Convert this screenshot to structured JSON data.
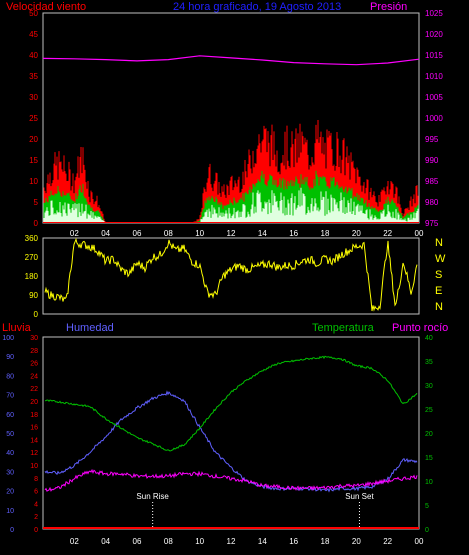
{
  "colors": {
    "background": "#000000",
    "frame": "#c0c0c0",
    "wind_speed": "#ff0000",
    "wind_gust": "#ff0000",
    "wind_avg": "#00c000",
    "wind_low": "#e0ffe0",
    "pressure": "#ff00ff",
    "direction": "#ffff00",
    "rain": "#ff0000",
    "humidity": "#6060ff",
    "temperature": "#00c000",
    "dewpoint": "#ff00ff",
    "sun_lines": "#ffffff",
    "axis_text_left_top": "#ff0000",
    "axis_text_right_top": "#ff00ff",
    "axis_text_humidity": "#6060ff",
    "axis_text_temperature": "#00c000",
    "compass_text": "#ffff00",
    "hour_text": "#ffffff"
  },
  "header": {
    "left_label": "Velocidad viento",
    "center_label": "24 hora graficado, 19 Agosto 2013",
    "right_label": "Presión"
  },
  "hours": [
    "02",
    "04",
    "06",
    "08",
    "10",
    "12",
    "14",
    "16",
    "18",
    "20",
    "22",
    "00"
  ],
  "chart_data": [
    {
      "type": "area",
      "name": "wind-pressure",
      "left_axis": {
        "ticks": [
          "0",
          "5",
          "10",
          "15",
          "20",
          "25",
          "30",
          "35",
          "40",
          "45",
          "50"
        ],
        "ylim": [
          0,
          50
        ]
      },
      "right_axis": {
        "ticks": [
          "975",
          "980",
          "985",
          "990",
          "995",
          "1000",
          "1005",
          "1010",
          "1015",
          "1020",
          "1025"
        ],
        "ylim": [
          975,
          1025
        ]
      },
      "series": [
        {
          "name": "Velocidad viento",
          "x": [
            0,
            0.5,
            1,
            1.5,
            2,
            2.5,
            3,
            3.5,
            4,
            4.5,
            5,
            5.5,
            6,
            6.5,
            7,
            7.5,
            8,
            8.5,
            9,
            9.5,
            10,
            10.5,
            11,
            11.5,
            12,
            12.5,
            13,
            13.5,
            14,
            14.5,
            15,
            15.5,
            16,
            16.5,
            17,
            17.5,
            18,
            18.5,
            19,
            19.5,
            20,
            20.5,
            21,
            21.5,
            22,
            22.5,
            23,
            23.5,
            24
          ],
          "values": [
            8,
            12,
            14,
            12,
            10,
            16,
            7,
            5,
            0,
            0,
            0,
            0,
            0,
            0,
            0,
            0,
            0,
            0,
            0,
            0,
            1,
            12,
            10,
            7,
            9,
            10,
            12,
            18,
            20,
            19,
            16,
            18,
            17,
            19,
            16,
            20,
            17,
            18,
            17,
            14,
            12,
            9,
            7,
            5,
            10,
            8,
            2,
            5,
            8
          ]
        },
        {
          "name": "Presión",
          "x": [
            0,
            2,
            4,
            6,
            8,
            10,
            12,
            14,
            16,
            18,
            20,
            22,
            24
          ],
          "values": [
            1014.2,
            1014.1,
            1013.9,
            1013.6,
            1013.9,
            1014.8,
            1014.3,
            1013.8,
            1013.2,
            1012.9,
            1012.7,
            1013.1,
            1014.0
          ]
        }
      ]
    },
    {
      "type": "line",
      "name": "wind-direction",
      "left_axis": {
        "ticks": [
          "0",
          "90",
          "180",
          "270",
          "360"
        ],
        "ylim": [
          0,
          360
        ]
      },
      "compass": [
        "N",
        "W",
        "S",
        "E",
        "N"
      ],
      "series": [
        {
          "name": "direction",
          "x": [
            0,
            0.5,
            1,
            1.5,
            2,
            2.5,
            3,
            3.5,
            4,
            4.5,
            5,
            5.5,
            6,
            6.5,
            7,
            7.5,
            8,
            8.5,
            9,
            9.5,
            10,
            10.5,
            11,
            11.5,
            12,
            12.5,
            13,
            13.5,
            14,
            14.5,
            15,
            15.5,
            16,
            16.5,
            17,
            17.5,
            18,
            18.5,
            19,
            19.5,
            20,
            20.5,
            21,
            21.5,
            22,
            22.5,
            23,
            23.5,
            24
          ],
          "values": [
            110,
            90,
            80,
            60,
            340,
            330,
            320,
            300,
            250,
            260,
            210,
            190,
            240,
            220,
            270,
            280,
            340,
            300,
            310,
            250,
            230,
            100,
            90,
            180,
            210,
            230,
            210,
            220,
            230,
            240,
            220,
            230,
            230,
            250,
            260,
            240,
            260,
            250,
            280,
            300,
            320,
            330,
            20,
            40,
            340,
            30,
            250,
            100,
            280
          ]
        }
      ]
    },
    {
      "type": "line",
      "name": "humidity-temperature",
      "header": {
        "rain": "Lluvia",
        "humidity": "Humedad",
        "temperature": "Temperatura",
        "dewpoint": "Punto rocío"
      },
      "humidity_axis": {
        "ticks": [
          "0",
          "10",
          "20",
          "30",
          "40",
          "50",
          "60",
          "70",
          "80",
          "90",
          "100"
        ],
        "ylim": [
          0,
          100
        ]
      },
      "rain_axis": {
        "ticks": [
          "0",
          "2",
          "4",
          "6",
          "8",
          "10",
          "12",
          "14",
          "16",
          "18",
          "20",
          "22",
          "24",
          "26",
          "28",
          "30"
        ],
        "ylim": [
          0,
          30
        ]
      },
      "temperature_axis": {
        "ticks": [
          "0",
          "5",
          "10",
          "15",
          "20",
          "25",
          "30",
          "35",
          "40"
        ],
        "ylim": [
          0,
          40
        ]
      },
      "annotations": {
        "sunrise": "Sun Rise",
        "sunset": "Sun Set",
        "sunrise_hour": 7,
        "sunset_hour": 20.2
      },
      "series": [
        {
          "name": "Lluvia",
          "x": [
            0,
            24
          ],
          "values": [
            0,
            0
          ]
        },
        {
          "name": "Humedad",
          "x": [
            0,
            1,
            2,
            3,
            4,
            5,
            6,
            7,
            8,
            9,
            10,
            11,
            12,
            13,
            14,
            15,
            16,
            17,
            18,
            19,
            20,
            21,
            22,
            23,
            24
          ],
          "values": [
            30,
            29,
            33,
            40,
            48,
            57,
            63,
            68,
            71,
            67,
            53,
            40,
            32,
            25,
            22,
            21,
            21,
            21,
            20,
            21,
            21,
            22,
            26,
            36,
            35
          ]
        },
        {
          "name": "Temperatura",
          "x": [
            0,
            1,
            2,
            3,
            4,
            5,
            6,
            7,
            8,
            9,
            10,
            11,
            12,
            13,
            14,
            15,
            16,
            17,
            18,
            19,
            20,
            21,
            22,
            23,
            24
          ],
          "values": [
            26.8,
            26.5,
            26,
            25.5,
            23,
            21,
            19,
            17.8,
            16.3,
            17.5,
            21,
            25,
            28.5,
            31,
            33,
            34.5,
            35,
            35.5,
            35.8,
            35.5,
            34,
            33.5,
            31,
            26,
            28.5
          ]
        },
        {
          "name": "Punto rocío",
          "x": [
            0,
            1,
            2,
            3,
            4,
            5,
            6,
            7,
            8,
            9,
            10,
            11,
            12,
            13,
            14,
            15,
            16,
            17,
            18,
            19,
            20,
            21,
            22,
            23,
            24
          ],
          "values": [
            8,
            8.5,
            10.5,
            12,
            11.5,
            11.5,
            11,
            11,
            11,
            11.5,
            11.5,
            11,
            10.5,
            10,
            9,
            8.8,
            8.5,
            8.5,
            8.6,
            9,
            9,
            9.5,
            10,
            10.5,
            11
          ]
        }
      ]
    }
  ]
}
